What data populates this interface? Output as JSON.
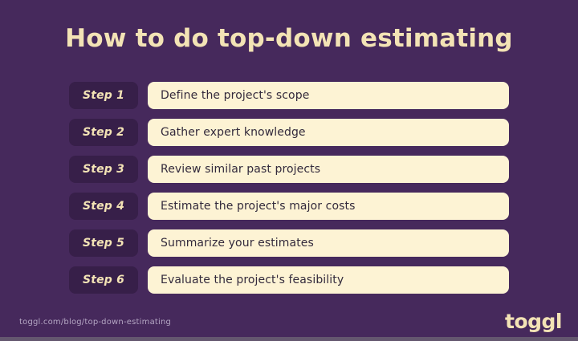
{
  "title": "How to do top-down estimating",
  "steps": [
    {
      "label": "Step 1",
      "text": "Define the project's scope"
    },
    {
      "label": "Step 2",
      "text": "Gather expert knowledge"
    },
    {
      "label": "Step 3",
      "text": "Review similar past projects"
    },
    {
      "label": "Step 4",
      "text": "Estimate the project's major costs"
    },
    {
      "label": "Step 5",
      "text": "Summarize your estimates"
    },
    {
      "label": "Step 6",
      "text": "Evaluate the project's feasibility"
    }
  ],
  "footer": {
    "url": "toggl.com/blog/top-down-estimating",
    "logo": "toggl"
  },
  "colors": {
    "background": "#46295c",
    "step_box": "#371f49",
    "card": "#fdf3d4",
    "cream_text": "#f3e3b5",
    "body_text": "#332a3c",
    "url_text": "#b3a5c2"
  }
}
